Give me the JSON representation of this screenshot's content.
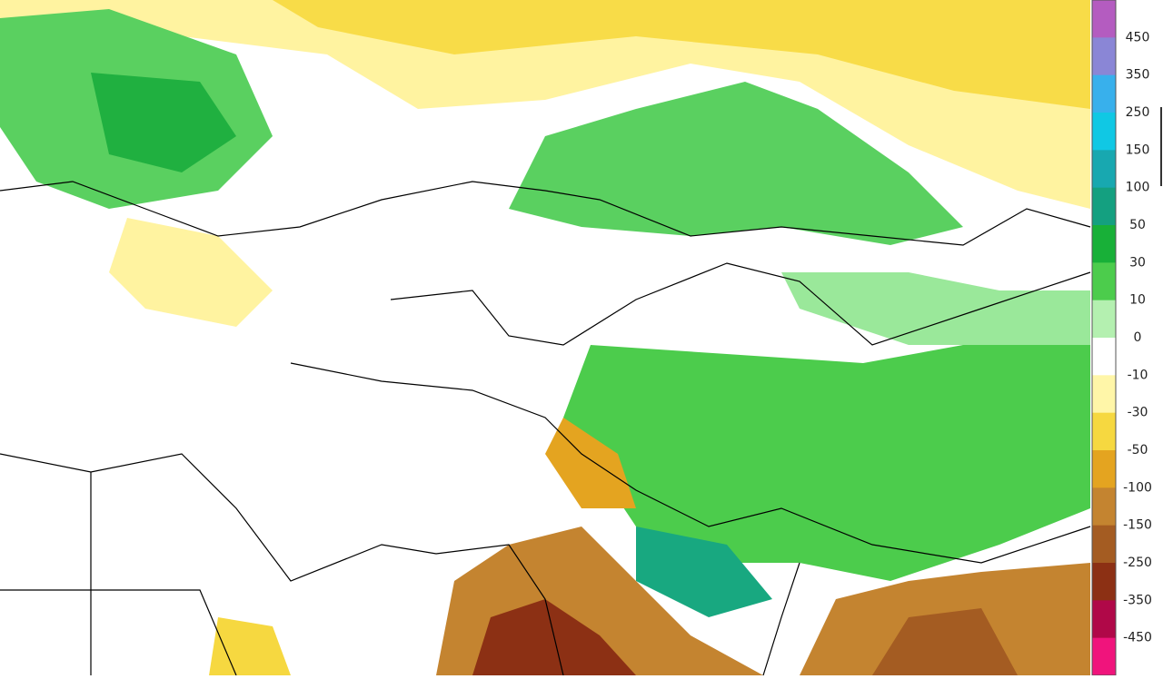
{
  "legend": {
    "labels": [
      450,
      350,
      250,
      150,
      100,
      50,
      30,
      10,
      0,
      -10,
      -30,
      -50,
      -100,
      -150,
      -250,
      -350,
      -450
    ],
    "colors": [
      "#b45cc0",
      "#8a86d6",
      "#38b0ec",
      "#10c8e4",
      "#18a8b0",
      "#14a080",
      "#18b038",
      "#4ccc4c",
      "#b4f0b0",
      "#ffffff",
      "#fff6a8",
      "#f6d840",
      "#e4a420",
      "#c48430",
      "#a45c22",
      "#8c3014",
      "#b00848",
      "#f0147c"
    ]
  }
}
